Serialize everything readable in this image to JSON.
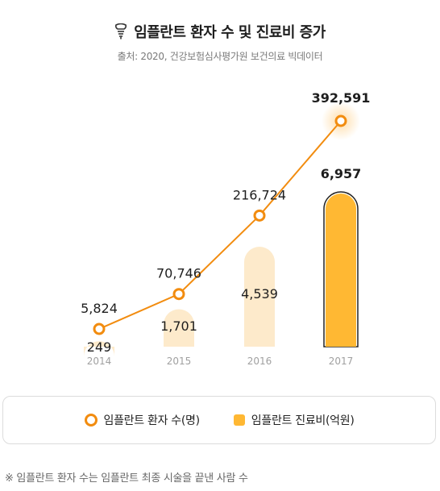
{
  "title": "임플란트 환자 수 및 진료비 증가",
  "source": "출처: 2020, 건강보험심사평가원 보건의료 빅데이터",
  "legend": {
    "patients_label": "임플란트 환자 수(명)",
    "cost_label": "임플란트 진료비(억원)"
  },
  "footnote": "※  임플란트 환자 수는 임플란트 최종 시술을 끝낸 사람 수",
  "colors": {
    "line": "#F28C0F",
    "bar_highlight": "#FFB833",
    "bar_light": "#FDEACB",
    "year_label": "#a0a0a0"
  },
  "chart_data": {
    "type": "bar+line",
    "categories": [
      "2014",
      "2015",
      "2016",
      "2017"
    ],
    "series": [
      {
        "name": "임플란트 환자 수(명)",
        "kind": "line",
        "values": [
          5824,
          70746,
          216724,
          392591
        ],
        "labels": [
          "5,824",
          "70,746",
          "216,724",
          "392,591"
        ]
      },
      {
        "name": "임플란트 진료비(억원)",
        "kind": "bar",
        "values": [
          249,
          1701,
          4539,
          6957
        ],
        "labels": [
          "249",
          "1,701",
          "4,539",
          "6,957"
        ]
      }
    ],
    "highlight_index": 3,
    "grid": false
  }
}
